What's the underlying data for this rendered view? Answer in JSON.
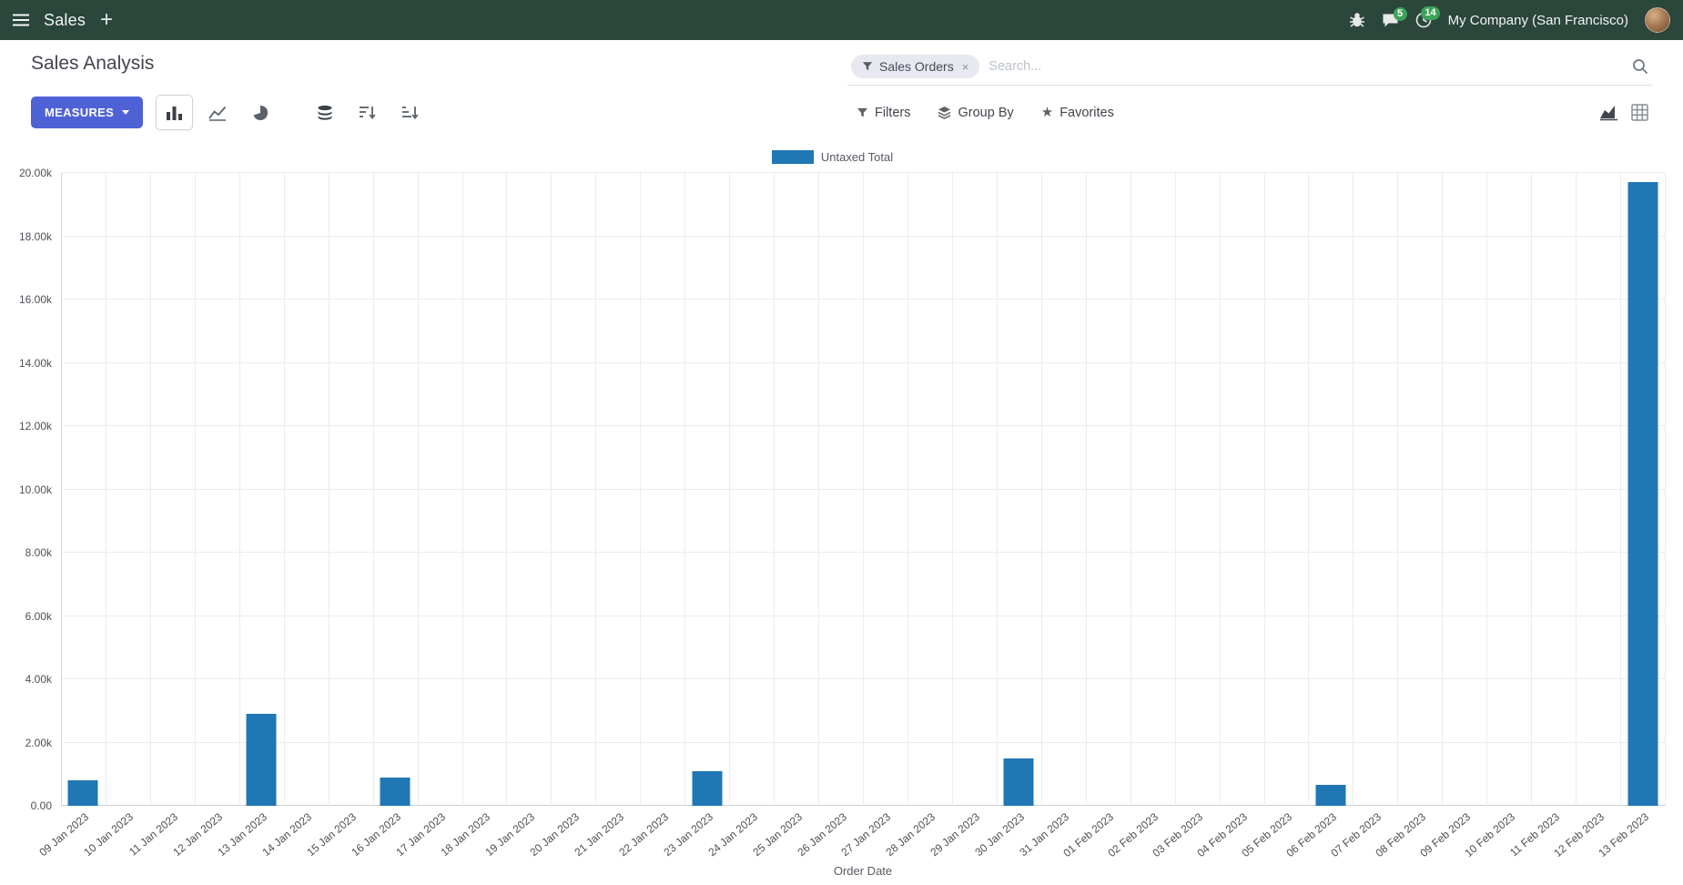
{
  "colors": {
    "navbar": "#2b463b",
    "primary": "#4e62d6",
    "badge": "#3da35a"
  },
  "navbar": {
    "app_name": "Sales",
    "plus": "+",
    "chat_badge": "5",
    "activity_badge": "14",
    "company": "My Company (San Francisco)"
  },
  "control_panel": {
    "title": "Sales Analysis",
    "search": {
      "facet": "Sales Orders",
      "facet_remove": "×",
      "placeholder": "Search..."
    },
    "measures_label": "MEASURES",
    "filters_label": "Filters",
    "group_by_label": "Group By",
    "favorites_label": "Favorites"
  },
  "chart_data": {
    "type": "bar",
    "title": "Sales Analysis",
    "legend": [
      "Untaxed Total"
    ],
    "series_color": "#1f77b4",
    "xlabel": "Order Date",
    "ylabel": "",
    "ylim": [
      0,
      20000
    ],
    "ytick_step": 2000,
    "ytick_labels": [
      "0.00",
      "2.00k",
      "4.00k",
      "6.00k",
      "8.00k",
      "10.00k",
      "12.00k",
      "14.00k",
      "16.00k",
      "18.00k",
      "20.00k"
    ],
    "grid": true,
    "legend_position": "top-center",
    "categories": [
      "09 Jan 2023",
      "10 Jan 2023",
      "11 Jan 2023",
      "12 Jan 2023",
      "13 Jan 2023",
      "14 Jan 2023",
      "15 Jan 2023",
      "16 Jan 2023",
      "17 Jan 2023",
      "18 Jan 2023",
      "19 Jan 2023",
      "20 Jan 2023",
      "21 Jan 2023",
      "22 Jan 2023",
      "23 Jan 2023",
      "24 Jan 2023",
      "25 Jan 2023",
      "26 Jan 2023",
      "27 Jan 2023",
      "28 Jan 2023",
      "29 Jan 2023",
      "30 Jan 2023",
      "31 Jan 2023",
      "01 Feb 2023",
      "02 Feb 2023",
      "03 Feb 2023",
      "04 Feb 2023",
      "05 Feb 2023",
      "06 Feb 2023",
      "07 Feb 2023",
      "08 Feb 2023",
      "09 Feb 2023",
      "10 Feb 2023",
      "11 Feb 2023",
      "12 Feb 2023",
      "13 Feb 2023"
    ],
    "values": [
      800,
      0,
      0,
      0,
      2900,
      0,
      0,
      900,
      0,
      0,
      0,
      0,
      0,
      0,
      1100,
      0,
      0,
      0,
      0,
      0,
      0,
      1500,
      0,
      0,
      0,
      0,
      0,
      0,
      650,
      0,
      0,
      0,
      0,
      0,
      0,
      19700
    ]
  }
}
